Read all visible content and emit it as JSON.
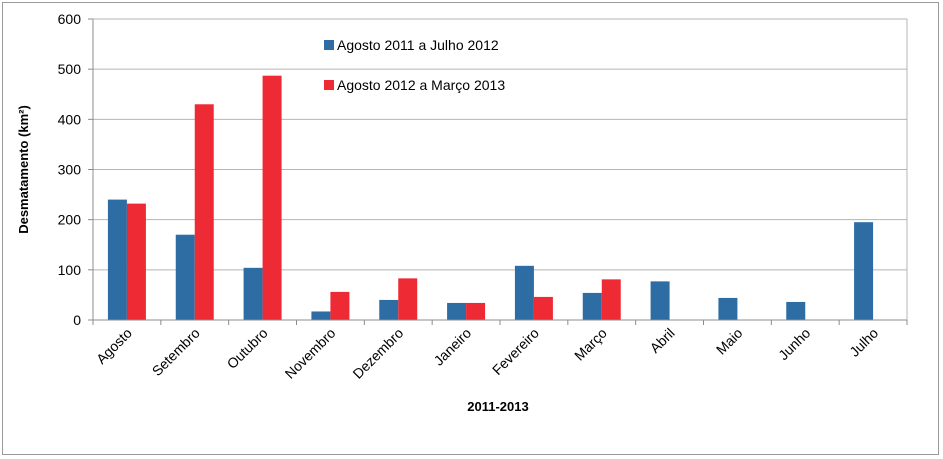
{
  "chart_data": {
    "type": "bar",
    "title": "",
    "xlabel": "2011-2013",
    "ylabel": "Desmatamento (km²)",
    "ylim": [
      0,
      600
    ],
    "yticks": [
      0,
      100,
      200,
      300,
      400,
      500,
      600
    ],
    "grid": true,
    "legend_position": "top-center",
    "categories": [
      "Agosto",
      "Setembro",
      "Outubro",
      "Novembro",
      "Dezembro",
      "Janeiro",
      "Fevereiro",
      "Março",
      "Abril",
      "Maio",
      "Junho",
      "Julho"
    ],
    "series": [
      {
        "name": "Agosto 2011 a Julho 2012",
        "color": "#2e6da4",
        "values": [
          240,
          170,
          104,
          17,
          40,
          34,
          108,
          54,
          77,
          44,
          36,
          195
        ]
      },
      {
        "name": "Agosto 2012 a Março 2013",
        "color": "#ee2a35",
        "values": [
          232,
          430,
          487,
          56,
          83,
          34,
          46,
          81,
          null,
          null,
          null,
          null
        ]
      }
    ]
  }
}
